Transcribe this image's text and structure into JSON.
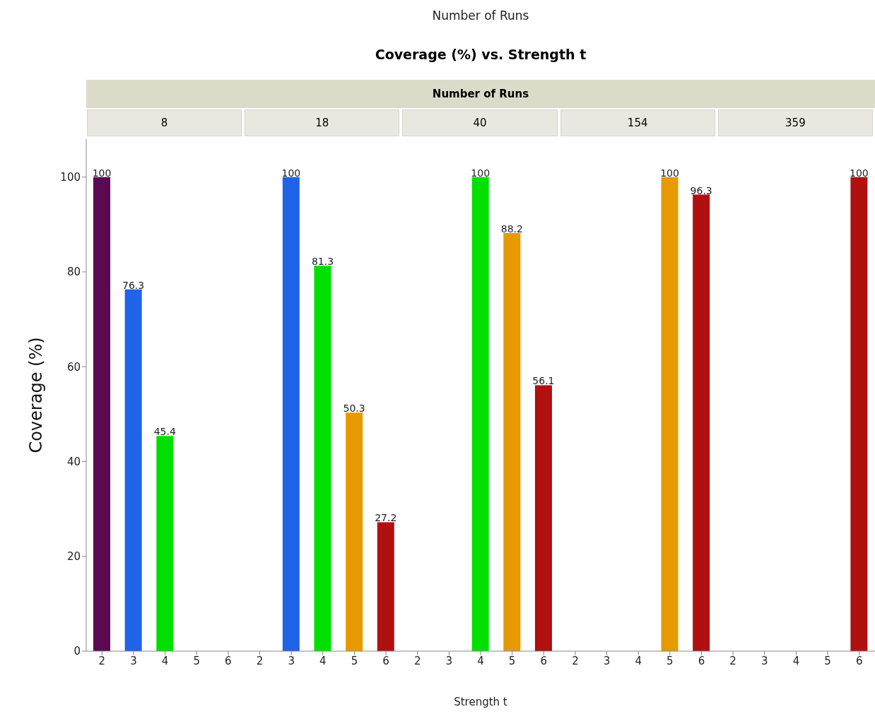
{
  "chart_data": {
    "type": "bar",
    "title": "Coverage (%) vs. Strength t",
    "xlabel": "Strength t",
    "ylabel": "Coverage (%)",
    "annotations": [
      "Number of Runs",
      "Number of Runs",
      "8",
      "18",
      "40",
      "154",
      "359"
    ],
    "categories": [
      "2",
      "3",
      "4",
      "5",
      "6",
      "2",
      "3",
      "4",
      "5",
      "6",
      "2",
      "3",
      "4",
      "5",
      "6",
      "2",
      "3",
      "4",
      "5",
      "6",
      "2",
      "3",
      "4",
      "5",
      "6"
    ],
    "values": [
      100,
      76.3,
      45.4,
      null,
      null,
      null,
      100,
      81.3,
      50.3,
      27.2,
      null,
      null,
      100,
      88.2,
      56.1,
      null,
      null,
      null,
      100,
      96.3,
      null,
      null,
      null,
      null,
      100
    ],
    "colors": [
      "#5b0a52",
      "#1f63e6",
      "#00e000",
      "#e69a00",
      "#b01010",
      "#5b0a52",
      "#1f63e6",
      "#00e000",
      "#e69a00",
      "#b01010",
      "#5b0a52",
      "#1f63e6",
      "#00e000",
      "#e69a00",
      "#b01010",
      "#5b0a52",
      "#1f63e6",
      "#00e000",
      "#e69a00",
      "#b01010",
      "#5b0a52",
      "#1f63e6",
      "#00e000",
      "#e69a00",
      "#b01010"
    ],
    "ylim": [
      0,
      108
    ],
    "yticks": [
      0,
      20,
      40,
      60,
      80,
      100
    ],
    "data_labels": true
  }
}
